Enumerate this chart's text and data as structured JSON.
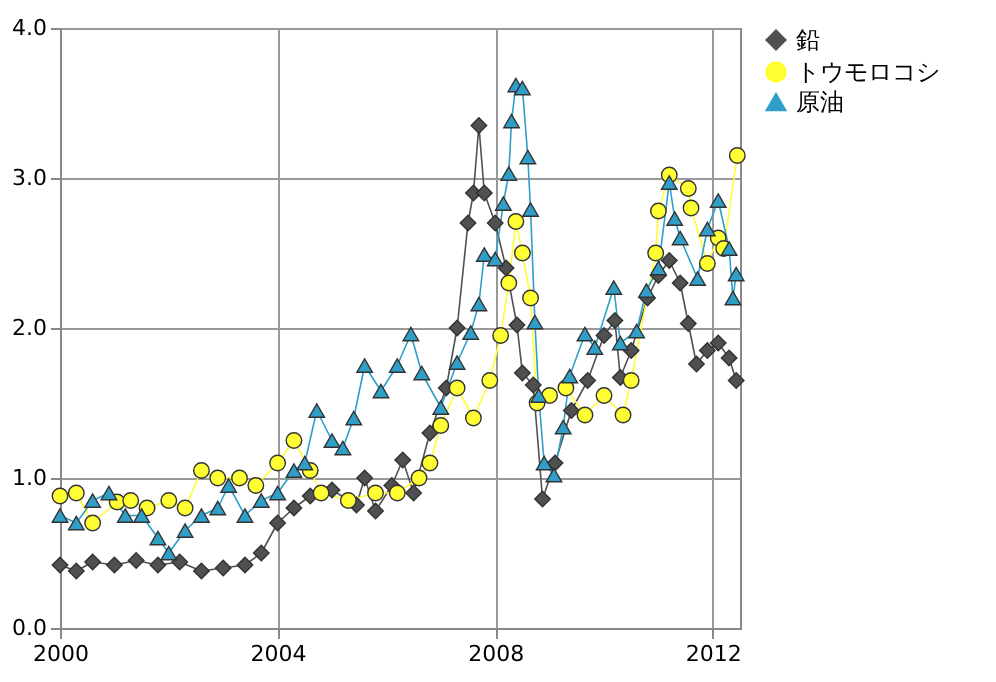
{
  "chart_data": {
    "type": "line",
    "xlim": [
      2000,
      2012.5
    ],
    "xticks": [
      2000,
      2004,
      2008,
      2012
    ],
    "ylim": [
      0,
      4
    ],
    "yticks": [
      {
        "value": 0,
        "label": "0.0"
      },
      {
        "value": 1,
        "label": "1.0"
      },
      {
        "value": 2,
        "label": "2.0"
      },
      {
        "value": 3,
        "label": "3.0"
      },
      {
        "value": 4,
        "label": "4.0"
      }
    ],
    "grid": true,
    "legend": "right",
    "series": [
      {
        "name": "鉛",
        "color": "#505050",
        "marker": "diamond",
        "x": [
          2000,
          2000.3,
          2000.6,
          2001,
          2001.4,
          2001.8,
          2002.2,
          2002.6,
          2003,
          2003.4,
          2003.7,
          2004,
          2004.3,
          2004.6,
          2005,
          2005.45,
          2005.6,
          2005.8,
          2006.1,
          2006.3,
          2006.5,
          2006.8,
          2007.1,
          2007.3,
          2007.5,
          2007.6,
          2007.7,
          2007.8,
          2008,
          2008.2,
          2008.4,
          2008.5,
          2008.7,
          2008.87,
          2009.1,
          2009.4,
          2009.7,
          2010,
          2010.2,
          2010.3,
          2010.5,
          2010.8,
          2011,
          2011.2,
          2011.4,
          2011.55,
          2011.7,
          2011.9,
          2012.1,
          2012.3,
          2012.43
        ],
        "values": [
          0.42,
          0.38,
          0.44,
          0.42,
          0.45,
          0.42,
          0.44,
          0.38,
          0.4,
          0.42,
          0.5,
          0.7,
          0.8,
          0.88,
          0.92,
          0.82,
          1.0,
          0.78,
          0.95,
          1.12,
          0.9,
          1.3,
          1.6,
          2.0,
          2.7,
          2.9,
          3.35,
          2.9,
          2.7,
          2.4,
          2.02,
          1.7,
          1.62,
          0.86,
          1.1,
          1.45,
          1.65,
          1.95,
          2.05,
          1.67,
          1.85,
          2.2,
          2.35,
          2.45,
          2.3,
          2.03,
          1.76,
          1.85,
          1.9,
          1.8,
          1.65
        ]
      },
      {
        "name": "トウモロコシ",
        "color": "#ffff33",
        "marker": "circle",
        "x": [
          2000,
          2000.3,
          2000.6,
          2001.05,
          2001.3,
          2001.6,
          2002,
          2002.3,
          2002.6,
          2002.9,
          2003.3,
          2003.6,
          2004,
          2004.3,
          2004.6,
          2004.8,
          2005.3,
          2005.8,
          2006.2,
          2006.6,
          2006.8,
          2007,
          2007.3,
          2007.6,
          2007.9,
          2008.1,
          2008.25,
          2008.38,
          2008.5,
          2008.65,
          2008.77,
          2009,
          2009.3,
          2009.65,
          2010,
          2010.35,
          2010.5,
          2010.95,
          2011,
          2011.2,
          2011.55,
          2011.6,
          2011.9,
          2012.1,
          2012.2,
          2012.45
        ],
        "values": [
          0.88,
          0.9,
          0.7,
          0.84,
          0.85,
          0.8,
          0.85,
          0.8,
          1.05,
          1.0,
          1.0,
          0.95,
          1.1,
          1.25,
          1.05,
          0.9,
          0.85,
          0.9,
          0.9,
          1.0,
          1.1,
          1.35,
          1.6,
          1.4,
          1.65,
          1.95,
          2.3,
          2.71,
          2.5,
          2.2,
          1.5,
          1.55,
          1.6,
          1.42,
          1.55,
          1.42,
          1.65,
          2.5,
          2.78,
          3.02,
          2.93,
          2.8,
          2.43,
          2.6,
          2.53,
          3.15
        ]
      },
      {
        "name": "原油",
        "color": "#2f9fc8",
        "marker": "triangle",
        "x": [
          2000,
          2000.3,
          2000.6,
          2000.9,
          2001.2,
          2001.5,
          2001.8,
          2002,
          2002.3,
          2002.6,
          2002.9,
          2003.1,
          2003.4,
          2003.7,
          2004,
          2004.3,
          2004.5,
          2004.72,
          2005,
          2005.2,
          2005.4,
          2005.6,
          2005.9,
          2006.2,
          2006.45,
          2006.65,
          2007,
          2007.3,
          2007.55,
          2007.7,
          2007.8,
          2008,
          2008.15,
          2008.25,
          2008.3,
          2008.38,
          2008.5,
          2008.6,
          2008.65,
          2008.73,
          2008.8,
          2008.9,
          2009.08,
          2009.25,
          2009.37,
          2009.65,
          2009.83,
          2010.18,
          2010.3,
          2010.6,
          2010.78,
          2011,
          2011.2,
          2011.3,
          2011.4,
          2011.72,
          2011.9,
          2012.1,
          2012.3,
          2012.37,
          2012.43
        ],
        "values": [
          0.75,
          0.7,
          0.85,
          0.9,
          0.75,
          0.75,
          0.6,
          0.5,
          0.65,
          0.75,
          0.8,
          0.95,
          0.75,
          0.85,
          0.9,
          1.05,
          1.1,
          1.45,
          1.25,
          1.2,
          1.4,
          1.75,
          1.58,
          1.75,
          1.96,
          1.7,
          1.47,
          1.77,
          1.97,
          2.16,
          2.49,
          2.46,
          2.83,
          3.03,
          3.38,
          3.62,
          3.6,
          3.14,
          2.79,
          2.04,
          1.55,
          1.1,
          1.02,
          1.34,
          1.68,
          1.96,
          1.87,
          2.27,
          1.9,
          1.98,
          2.25,
          2.4,
          2.97,
          2.73,
          2.6,
          2.33,
          2.66,
          2.85,
          2.53,
          2.2,
          2.36
        ]
      }
    ]
  }
}
